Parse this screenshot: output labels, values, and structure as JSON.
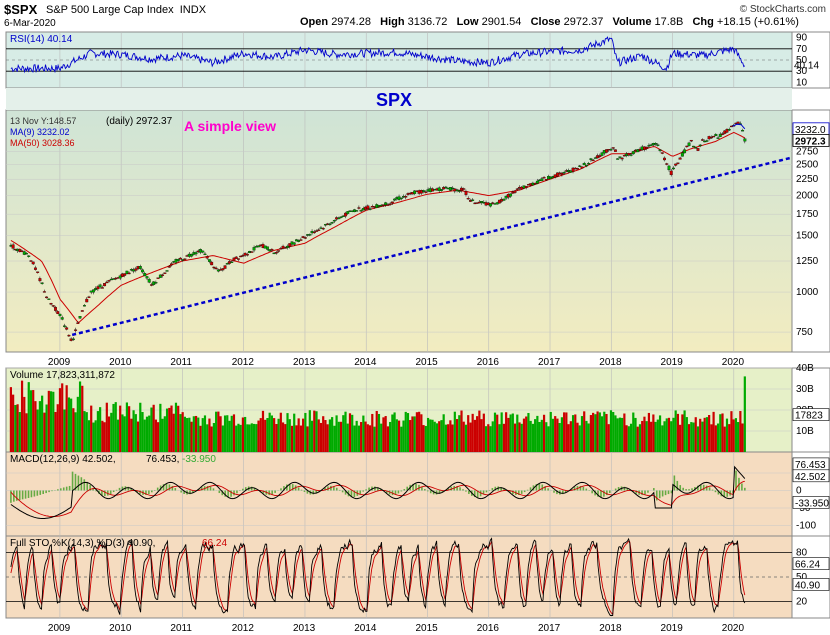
{
  "header": {
    "symbol": "$SPX",
    "name": "S&P 500 Large Cap Index",
    "exchange": "INDX",
    "date": "6-Mar-2020",
    "open_label": "Open",
    "open": "2974.28",
    "high_label": "High",
    "high": "3136.72",
    "low_label": "Low",
    "low": "2901.54",
    "close_label": "Close",
    "close": "2972.37",
    "volume_label": "Volume",
    "volume": "17.8B",
    "chg_label": "Chg",
    "chg": "+18.15 (+0.61%)",
    "brand": "© StockCharts.com"
  },
  "colors": {
    "up": "#00aa00",
    "down": "#cc0000",
    "ma9": "#0000cc",
    "ma50": "#cc0000",
    "trend": "#0000cc",
    "rsi": "#0000cc",
    "annotation_spx": "#0000cc",
    "annotation_simple": "#ff00cc",
    "price_bg": "#e6f0c8",
    "ind_bg": "#f5dcc0"
  },
  "chart_data": [
    {
      "type": "line",
      "panel": "rsi",
      "legend": "RSI(14) 40.14",
      "current": "40.14",
      "ylim": [
        0,
        100
      ],
      "y_ticks": [
        "90",
        "70",
        "50",
        "30",
        "10"
      ],
      "levels": [
        70,
        30
      ],
      "series": [
        {
          "name": "RSI(14)",
          "x": [
            "2009",
            "2009.5",
            "2010",
            "2010.5",
            "2011",
            "2011.5",
            "2012",
            "2012.5",
            "2013",
            "2013.5",
            "2014",
            "2014.5",
            "2015",
            "2015.5",
            "2016",
            "2016.5",
            "2017",
            "2017.5",
            "2018",
            "2018.1",
            "2018.5",
            "2018.9",
            "2019",
            "2019.5",
            "2020",
            "2020.15",
            "2020.18"
          ],
          "values": [
            35,
            62,
            60,
            52,
            58,
            45,
            62,
            55,
            68,
            60,
            62,
            64,
            56,
            48,
            45,
            60,
            65,
            68,
            88,
            45,
            58,
            35,
            62,
            58,
            70,
            45,
            40
          ]
        }
      ]
    },
    {
      "type": "line",
      "panel": "price",
      "annotations": [
        "SPX",
        "A simple view"
      ],
      "legend": [
        "(daily) 2972.37",
        "MA(9) 3232.02",
        "MA(50) 3028.36"
      ],
      "tooltip": "13 Nov Y:148.57",
      "current_labels": [
        "3232.0",
        "2972.3"
      ],
      "y_scale": "log",
      "ylim": [
        650,
        3700
      ],
      "y_ticks": [
        750,
        1000,
        1250,
        1500,
        1750,
        2000,
        2250,
        2500,
        2750
      ],
      "x_ticks": [
        "2009",
        "2010",
        "2011",
        "2012",
        "2013",
        "2014",
        "2015",
        "2016",
        "2017",
        "2018",
        "2019",
        "2020"
      ],
      "series": [
        {
          "name": "(daily)",
          "x": [
            2008.2,
            2008.5,
            2008.8,
            2009.0,
            2009.2,
            2009.5,
            2009.9,
            2010.3,
            2010.5,
            2010.9,
            2011.3,
            2011.6,
            2011.8,
            2012.3,
            2012.5,
            2012.8,
            2013.3,
            2013.8,
            2014.3,
            2014.8,
            2015.3,
            2015.6,
            2015.7,
            2016.1,
            2016.5,
            2016.9,
            2017.5,
            2018.05,
            2018.1,
            2018.5,
            2018.75,
            2018.98,
            2019.3,
            2019.4,
            2019.5,
            2019.8,
            2020.1,
            2020.12,
            2020.18
          ],
          "values": [
            1400,
            1300,
            950,
            850,
            700,
            1000,
            1100,
            1200,
            1050,
            1250,
            1350,
            1150,
            1250,
            1400,
            1330,
            1420,
            1600,
            1800,
            1880,
            2050,
            2110,
            2080,
            1920,
            1870,
            2100,
            2250,
            2450,
            2850,
            2600,
            2800,
            2900,
            2350,
            2950,
            2750,
            2980,
            3100,
            3386,
            3300,
            2972
          ]
        },
        {
          "name": "MA(9)",
          "x": [
            2019.98,
            2020.05,
            2020.12,
            2020.18
          ],
          "values": [
            3290,
            3340,
            3330,
            3232
          ]
        },
        {
          "name": "MA(50)",
          "x": [
            2008.2,
            2008.7,
            2009.0,
            2009.3,
            2009.6,
            2010.0,
            2010.5,
            2011.0,
            2011.5,
            2012.0,
            2012.5,
            2013.0,
            2013.5,
            2014.0,
            2014.5,
            2015.0,
            2015.5,
            2016.0,
            2016.5,
            2017.0,
            2017.5,
            2018.0,
            2018.3,
            2018.7,
            2019.0,
            2019.3,
            2019.7,
            2020.0,
            2020.18
          ],
          "values": [
            1450,
            1250,
            950,
            800,
            900,
            1050,
            1150,
            1250,
            1300,
            1230,
            1350,
            1420,
            1600,
            1800,
            1900,
            2020,
            2080,
            2000,
            2080,
            2250,
            2420,
            2700,
            2700,
            2850,
            2650,
            2800,
            2950,
            3150,
            3028
          ]
        },
        {
          "name": "trendline",
          "x": [
            2009.2,
            2020.92
          ],
          "values": [
            735,
            2620
          ]
        }
      ]
    },
    {
      "type": "bar",
      "panel": "volume",
      "legend": "Volume 17,823,311,872",
      "current_label": "17823",
      "y_ticks": [
        "40B",
        "30B",
        "20B",
        "10B"
      ],
      "ylim": [
        0,
        40
      ]
    },
    {
      "type": "line",
      "panel": "macd",
      "legend": [
        "MACD(12,26,9) 42.502",
        "76.453",
        "-33.950"
      ],
      "y_ticks": [
        "50",
        "0",
        "-50",
        "-100"
      ],
      "current_labels": [
        "76.453",
        "42.502",
        "-33.950"
      ],
      "ylim": [
        -130,
        110
      ]
    },
    {
      "type": "line",
      "panel": "stochastic",
      "legend": [
        "Full STO %K(14,3) %D(3) 40.90,",
        "66.24"
      ],
      "y_ticks": [
        "80",
        "50",
        "20"
      ],
      "levels": [
        80,
        50,
        20
      ],
      "current_labels": [
        "66.24",
        "40.90"
      ],
      "ylim": [
        0,
        100
      ]
    }
  ]
}
